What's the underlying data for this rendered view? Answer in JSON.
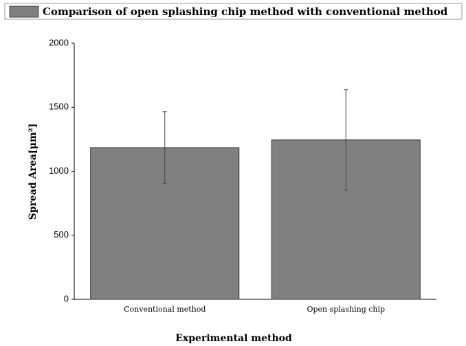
{
  "chart_data": {
    "type": "bar",
    "categories": [
      "Conventional method",
      "Open splashing chip"
    ],
    "series": [
      {
        "name": "Comparison of open splashing chip method with conventional method",
        "color": "#808080",
        "values": [
          1185,
          1245
        ],
        "errors": [
          280,
          392
        ]
      }
    ],
    "xlabel": "Experimental method",
    "ylabel": "Spread Area[μm²]",
    "ylim": [
      0,
      2000
    ],
    "yticks": [
      0,
      500,
      1000,
      1500,
      2000
    ],
    "grid": false,
    "legend": "top"
  }
}
